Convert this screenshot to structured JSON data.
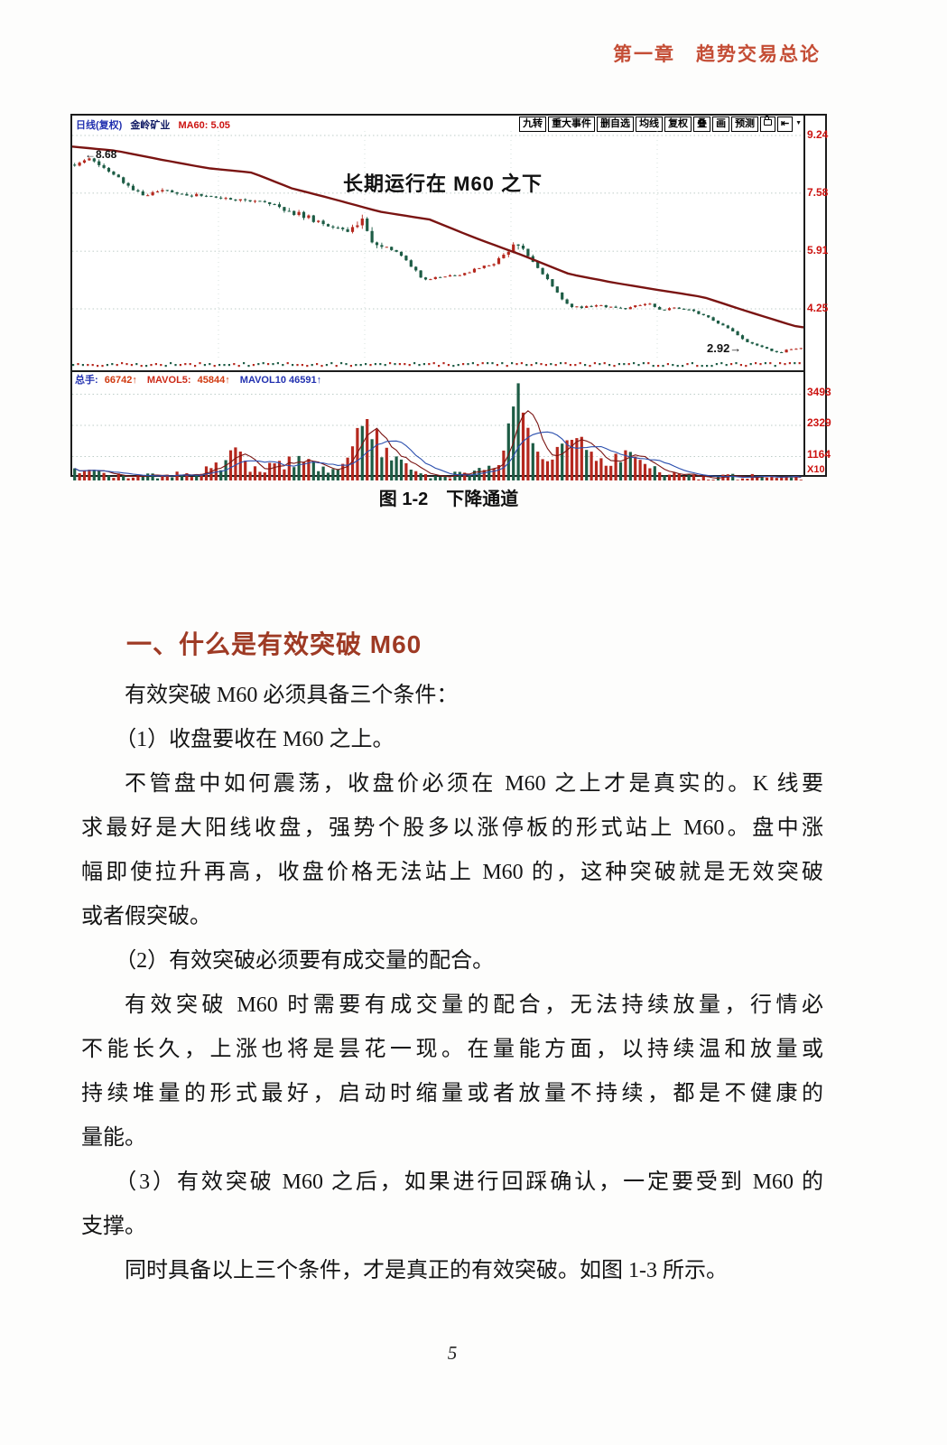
{
  "page": {
    "chapter_header": "第一章　趋势交易总论",
    "caption": "图 1-2　下降通道",
    "page_number": "5"
  },
  "section": {
    "heading": "一、什么是有效突破 M60"
  },
  "body": {
    "lines": [
      "有效突破 M60 必须具备三个条件：",
      "（1）收盘要收在 M60 之上。",
      "不管盘中如何震荡，收盘价必须在 M60 之上才是真实的。K 线要",
      "求最好是大阳线收盘，强势个股多以涨停板的形式站上 M60。盘中涨",
      "幅即使拉升再高，收盘价格无法站上 M60 的，这种突破就是无效突破",
      "或者假突破。",
      "（2）有效突破必须要有成交量的配合。",
      "有效突破 M60 时需要有成交量的配合，无法持续放量，行情必",
      "不能长久，上涨也将是昙花一现。在量能方面，以持续温和放量或",
      "持续堆量的形式最好，启动时缩量或者放量不持续，都是不健康的",
      "量能。",
      "（3）有效突破 M60 之后，如果进行回踩确认，一定要受到 M60 的",
      "支撑。",
      "同时具备以上三个条件，才是真正的有效突破。如图 1-3 所示。"
    ]
  },
  "chart": {
    "title": {
      "period": "日线(复权)",
      "stock": "金岭矿业",
      "indicator": "MA60: 5.05"
    },
    "toolbar": {
      "buttons": [
        "九转",
        "重大事件",
        "删自选",
        "均线",
        "复权",
        "叠",
        "画",
        "预测"
      ],
      "jump_icon": "⇤",
      "dropdown_icon": "▼"
    },
    "annotation": "长期运行在 M60 之下",
    "high_label": "←8.68",
    "low_label": "2.92→",
    "price_axis_labels": [
      "9.24",
      "7.58",
      "5.91",
      "4.25"
    ],
    "volume": {
      "total_label": "总手:",
      "total_value": "66742↑",
      "mavol5_label": "MAVOL5:",
      "mavol5_value": "45844↑",
      "mavol10_label": "MAVOL10",
      "mavol10_value": "46591↑",
      "axis_labels": [
        "3493",
        "2329",
        "1164"
      ],
      "unit": "X10"
    }
  },
  "chart_data": {
    "type": "candlestick+volume",
    "title": "金岭矿业 日线(复权)",
    "ma_name": "MA60",
    "ma_value": 5.05,
    "high": 8.68,
    "low": 2.92,
    "price_axis": [
      9.24,
      7.58,
      5.91,
      4.25
    ],
    "volume_axis": [
      3493,
      2329,
      1164
    ],
    "volume_unit_multiplier": 10,
    "n_candles": 150,
    "up_color": "#b5281e",
    "down_color": "#1d5c45",
    "ma_color": "#7a1412",
    "mavol5_color": "#7a1412",
    "mavol10_color": "#2b4fae",
    "price_waypoints": [
      [
        0.0,
        8.4
      ],
      [
        0.02,
        8.62
      ],
      [
        0.05,
        8.15
      ],
      [
        0.07,
        7.85
      ],
      [
        0.095,
        7.5
      ],
      [
        0.12,
        7.68
      ],
      [
        0.15,
        7.55
      ],
      [
        0.19,
        7.48
      ],
      [
        0.23,
        7.38
      ],
      [
        0.27,
        7.28
      ],
      [
        0.3,
        7.05
      ],
      [
        0.325,
        6.85
      ],
      [
        0.35,
        6.6
      ],
      [
        0.375,
        6.5
      ],
      [
        0.395,
        6.85
      ],
      [
        0.405,
        6.3
      ],
      [
        0.42,
        6.1
      ],
      [
        0.44,
        5.95
      ],
      [
        0.46,
        5.55
      ],
      [
        0.48,
        5.1
      ],
      [
        0.5,
        5.15
      ],
      [
        0.52,
        5.2
      ],
      [
        0.54,
        5.3
      ],
      [
        0.56,
        5.45
      ],
      [
        0.58,
        5.6
      ],
      [
        0.6,
        5.95
      ],
      [
        0.613,
        6.2
      ],
      [
        0.625,
        5.75
      ],
      [
        0.64,
        5.35
      ],
      [
        0.655,
        5.0
      ],
      [
        0.67,
        4.55
      ],
      [
        0.685,
        4.3
      ],
      [
        0.7,
        4.3
      ],
      [
        0.72,
        4.35
      ],
      [
        0.74,
        4.3
      ],
      [
        0.755,
        4.25
      ],
      [
        0.775,
        4.35
      ],
      [
        0.79,
        4.4
      ],
      [
        0.81,
        4.2
      ],
      [
        0.825,
        4.3
      ],
      [
        0.84,
        4.25
      ],
      [
        0.855,
        4.15
      ],
      [
        0.87,
        4.05
      ],
      [
        0.885,
        3.85
      ],
      [
        0.9,
        3.7
      ],
      [
        0.915,
        3.45
      ],
      [
        0.93,
        3.25
      ],
      [
        0.945,
        3.15
      ],
      [
        0.96,
        3.05
      ],
      [
        0.97,
        2.98
      ],
      [
        0.985,
        3.1
      ],
      [
        1.0,
        3.12
      ]
    ],
    "m60_waypoints": [
      [
        0.0,
        8.92
      ],
      [
        0.06,
        8.8
      ],
      [
        0.12,
        8.55
      ],
      [
        0.185,
        8.3
      ],
      [
        0.246,
        8.17
      ],
      [
        0.3,
        7.72
      ],
      [
        0.35,
        7.45
      ],
      [
        0.42,
        7.05
      ],
      [
        0.489,
        6.82
      ],
      [
        0.55,
        6.3
      ],
      [
        0.616,
        5.79
      ],
      [
        0.68,
        5.25
      ],
      [
        0.739,
        5.01
      ],
      [
        0.8,
        4.8
      ],
      [
        0.863,
        4.59
      ],
      [
        0.92,
        4.2
      ],
      [
        0.987,
        3.76
      ],
      [
        1.0,
        3.72
      ]
    ],
    "volume_waypoints": [
      [
        0.0,
        600
      ],
      [
        0.04,
        500
      ],
      [
        0.08,
        420
      ],
      [
        0.12,
        500
      ],
      [
        0.16,
        550
      ],
      [
        0.2,
        800
      ],
      [
        0.217,
        1500
      ],
      [
        0.24,
        700
      ],
      [
        0.28,
        900
      ],
      [
        0.31,
        1100
      ],
      [
        0.33,
        800
      ],
      [
        0.37,
        700
      ],
      [
        0.4,
        2400
      ],
      [
        0.42,
        1600
      ],
      [
        0.45,
        800
      ],
      [
        0.48,
        500
      ],
      [
        0.52,
        450
      ],
      [
        0.56,
        600
      ],
      [
        0.59,
        1200
      ],
      [
        0.608,
        3600
      ],
      [
        0.625,
        1800
      ],
      [
        0.65,
        1000
      ],
      [
        0.69,
        1800
      ],
      [
        0.72,
        900
      ],
      [
        0.76,
        1100
      ],
      [
        0.8,
        600
      ],
      [
        0.84,
        450
      ],
      [
        0.88,
        380
      ],
      [
        0.92,
        420
      ],
      [
        0.96,
        350
      ],
      [
        1.0,
        400
      ]
    ]
  }
}
